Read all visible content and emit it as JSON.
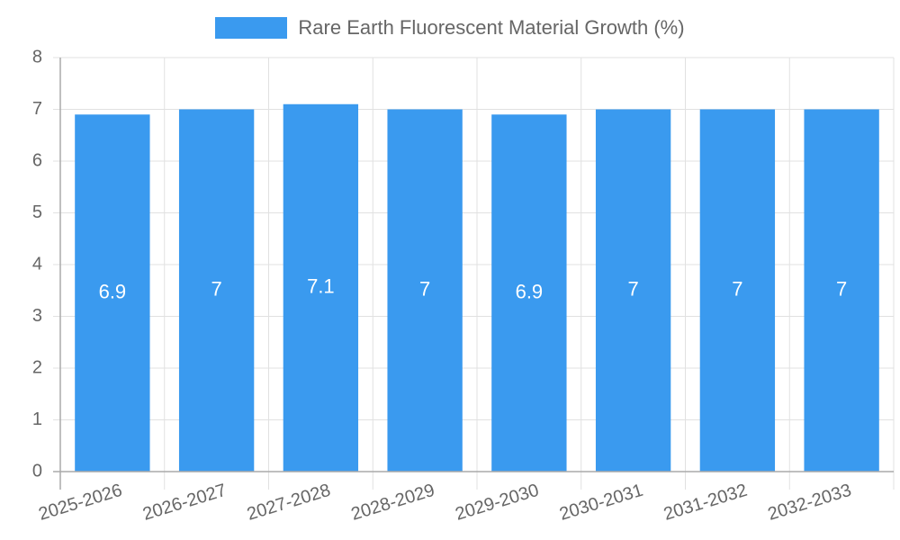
{
  "chart_data": {
    "type": "bar",
    "title": "",
    "legend": [
      "Rare Earth Fluorescent Material Growth (%)"
    ],
    "legend_position": "top",
    "categories": [
      "2025-2026",
      "2026-2027",
      "2027-2028",
      "2028-2029",
      "2029-2030",
      "2030-2031",
      "2031-2032",
      "2032-2033"
    ],
    "series": [
      {
        "name": "Rare Earth Fluorescent Material Growth (%)",
        "values": [
          6.9,
          7,
          7.1,
          7,
          6.9,
          7,
          7,
          7
        ],
        "color": "#3a9aef"
      }
    ],
    "xlabel": "",
    "ylabel": "",
    "ylim": [
      0,
      8
    ],
    "yticks": [
      0,
      1,
      2,
      3,
      4,
      5,
      6,
      7,
      8
    ],
    "grid": true,
    "data_labels": [
      "6.9",
      "7",
      "7.1",
      "7",
      "6.9",
      "7",
      "7",
      "7"
    ]
  }
}
